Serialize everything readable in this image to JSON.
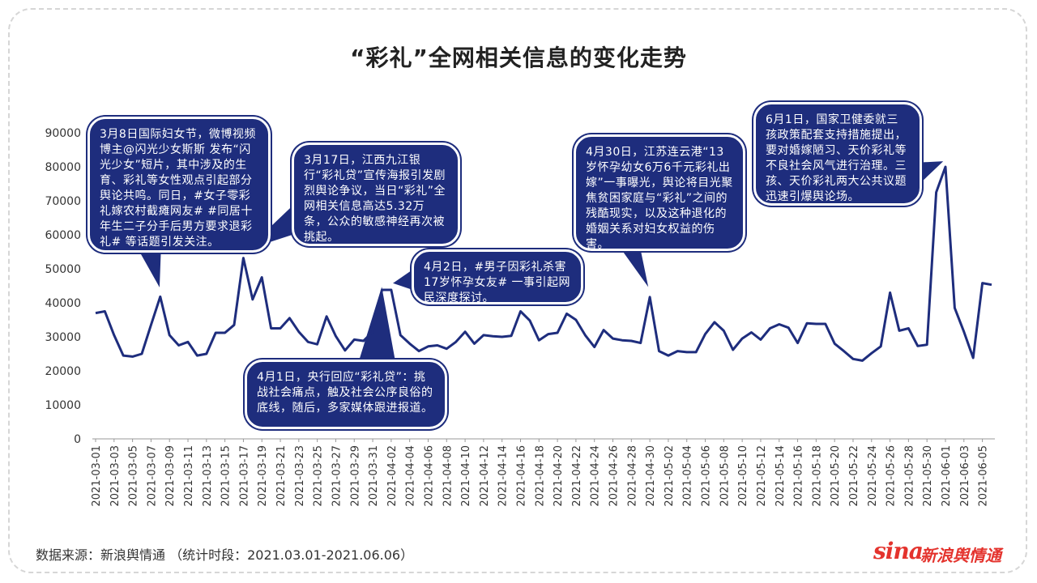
{
  "title": "“彩礼”全网相关信息的变化走势",
  "source": "数据来源：新浪舆情通 （统计时段：2021.03.01-2021.06.06）",
  "logo": {
    "sina": "sina",
    "text": "新浪舆情通"
  },
  "colors": {
    "line": "#1e2d7d",
    "bubble": "#1e2d7d",
    "axis": "#999999",
    "logo": "#e4332d"
  },
  "annotations": [
    {
      "text": "3月8日国际妇女节，微博视频博主@闪光少女斯斯 发布“闪光少女”短片，其中涉及的生育、彩礼等女性观点引起部分舆论共鸣。同日，#女子零彩礼嫁农村截瘫网友# #同居十年生二子分手后男方要求退彩礼# 等话题引发关注。"
    },
    {
      "text": "3月17日，江西九江银行“彩礼贷”宣传海报引发剧烈舆论争议，当日“彩礼”全网相关信息高达5.32万条，公众的敏感神经再次被挑起。"
    },
    {
      "text": "4月1日，央行回应“彩礼贷”：挑战社会痛点，触及社会公序良俗的底线，随后，多家媒体跟进报道。"
    },
    {
      "text": "4月2日，#男子因彩礼杀害17岁怀孕女友# 一事引起网民深度探讨。"
    },
    {
      "text": "4月30日，江苏连云港“13岁怀孕幼女6万6千元彩礼出嫁”一事曝光，舆论将目光聚焦贫困家庭与“彩礼”之间的残酷现实，以及这种退化的婚姻关系对妇女权益的伤害。"
    },
    {
      "text": "6月1日，国家卫健委就三孩政策配套支持措施提出，要对婚嫁陋习、天价彩礼等不良社会风气进行治理。三孩、天价彩礼两大公共议题迅速引爆舆论场。"
    }
  ],
  "chart_data": {
    "type": "line",
    "x": [
      "2021-03-01",
      "2021-03-02",
      "2021-03-03",
      "2021-03-04",
      "2021-03-05",
      "2021-03-06",
      "2021-03-07",
      "2021-03-08",
      "2021-03-09",
      "2021-03-10",
      "2021-03-11",
      "2021-03-12",
      "2021-03-13",
      "2021-03-14",
      "2021-03-15",
      "2021-03-16",
      "2021-03-17",
      "2021-03-18",
      "2021-03-19",
      "2021-03-20",
      "2021-03-21",
      "2021-03-22",
      "2021-03-23",
      "2021-03-24",
      "2021-03-25",
      "2021-03-26",
      "2021-03-27",
      "2021-03-28",
      "2021-03-29",
      "2021-03-30",
      "2021-03-31",
      "2021-04-01",
      "2021-04-02",
      "2021-04-03",
      "2021-04-04",
      "2021-04-05",
      "2021-04-06",
      "2021-04-07",
      "2021-04-08",
      "2021-04-09",
      "2021-04-10",
      "2021-04-11",
      "2021-04-12",
      "2021-04-13",
      "2021-04-14",
      "2021-04-15",
      "2021-04-16",
      "2021-04-17",
      "2021-04-18",
      "2021-04-19",
      "2021-04-20",
      "2021-04-21",
      "2021-04-22",
      "2021-04-23",
      "2021-04-24",
      "2021-04-25",
      "2021-04-26",
      "2021-04-27",
      "2021-04-28",
      "2021-04-29",
      "2021-04-30",
      "2021-05-01",
      "2021-05-02",
      "2021-05-03",
      "2021-05-04",
      "2021-05-05",
      "2021-05-06",
      "2021-05-07",
      "2021-05-08",
      "2021-05-09",
      "2021-05-10",
      "2021-05-11",
      "2021-05-12",
      "2021-05-13",
      "2021-05-14",
      "2021-05-15",
      "2021-05-16",
      "2021-05-17",
      "2021-05-18",
      "2021-05-19",
      "2021-05-20",
      "2021-05-21",
      "2021-05-22",
      "2021-05-23",
      "2021-05-24",
      "2021-05-25",
      "2021-05-26",
      "2021-05-27",
      "2021-05-28",
      "2021-05-29",
      "2021-05-30",
      "2021-05-31",
      "2021-06-01",
      "2021-06-02",
      "2021-06-03",
      "2021-06-04",
      "2021-06-05",
      "2021-06-06"
    ],
    "xtick_labels": [
      "2021-03-01",
      "2021-03-03",
      "2021-03-05",
      "2021-03-07",
      "2021-03-09",
      "2021-03-11",
      "2021-03-13",
      "2021-03-15",
      "2021-03-17",
      "2021-03-19",
      "2021-03-21",
      "2021-03-23",
      "2021-03-25",
      "2021-03-27",
      "2021-03-29",
      "2021-03-31",
      "2021-04-02",
      "2021-04-04",
      "2021-04-06",
      "2021-04-08",
      "2021-04-10",
      "2021-04-12",
      "2021-04-14",
      "2021-04-16",
      "2021-04-18",
      "2021-04-20",
      "2021-04-22",
      "2021-04-24",
      "2021-04-26",
      "2021-04-28",
      "2021-04-30",
      "2021-05-02",
      "2021-05-04",
      "2021-05-06",
      "2021-05-08",
      "2021-05-10",
      "2021-05-12",
      "2021-05-14",
      "2021-05-16",
      "2021-05-18",
      "2021-05-20",
      "2021-05-22",
      "2021-05-24",
      "2021-05-26",
      "2021-05-28",
      "2021-05-30",
      "2021-06-01",
      "2021-06-03",
      "2021-06-05"
    ],
    "values": [
      37000,
      37500,
      30500,
      24500,
      24200,
      25000,
      33500,
      41800,
      30500,
      27500,
      28500,
      24500,
      25000,
      31200,
      31200,
      33500,
      53200,
      41000,
      47500,
      32500,
      32500,
      35500,
      31500,
      28500,
      27800,
      36000,
      30200,
      26000,
      29200,
      28800,
      31500,
      43800,
      43800,
      30500,
      28000,
      25800,
      27200,
      27500,
      26500,
      28500,
      31500,
      28000,
      30500,
      30200,
      30000,
      30300,
      37500,
      34800,
      29000,
      30800,
      31200,
      36800,
      35000,
      30500,
      27000,
      32000,
      29500,
      29000,
      28800,
      28200,
      41700,
      25800,
      24500,
      25800,
      25500,
      25500,
      30800,
      34300,
      31800,
      26200,
      29500,
      31300,
      29200,
      32500,
      33700,
      32700,
      28200,
      34000,
      33800,
      33800,
      28000,
      25800,
      23500,
      23000,
      25200,
      27200,
      43000,
      31800,
      32500,
      27300,
      27700,
      72500,
      80000,
      38500,
      31500,
      23800,
      45800,
      45300
    ],
    "yticks": [
      0,
      10000,
      20000,
      30000,
      40000,
      50000,
      60000,
      70000,
      80000,
      90000
    ],
    "ylim": [
      0,
      90000
    ],
    "grid": false
  }
}
